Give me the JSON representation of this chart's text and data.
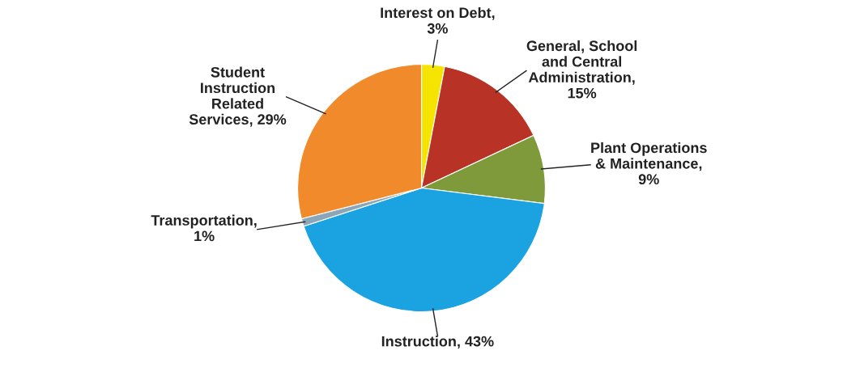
{
  "chart_data": {
    "type": "pie",
    "categories": [
      "Interest on Debt,\n3%",
      "General, School\nand Central\nAdministration,\n15%",
      "Plant Operations\n& Maintenance,\n9%",
      "Instruction, 43%",
      "Transportation,\n1%",
      "Student\nInstruction\nRelated\nServices, 29%"
    ],
    "values": [
      3,
      15,
      9,
      43,
      1,
      29
    ],
    "colors": [
      "#f5e400",
      "#b83226",
      "#7f9a3a",
      "#1aa3e0",
      "#8aa6b8",
      "#f08a2a"
    ]
  }
}
